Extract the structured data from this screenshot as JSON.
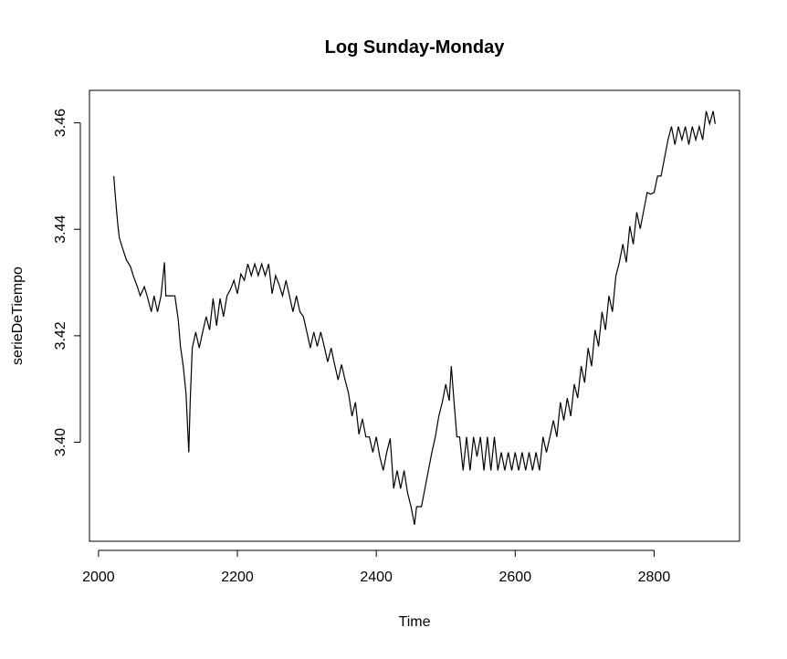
{
  "chart_data": {
    "type": "line",
    "title": "Log Sunday-Monday",
    "x_label": "Time",
    "y_label": "serieDeTiempo",
    "xlim": [
      1987,
      2923
    ],
    "ylim": [
      3.3814,
      3.4661
    ],
    "xticks": [
      2000,
      2200,
      2400,
      2600,
      2800
    ],
    "yticks": [
      {
        "value": 3.4,
        "label": "3.40"
      },
      3.42,
      3.44,
      3.46
    ],
    "grid": false,
    "series": [
      {
        "color": "#000000",
        "x": [
          2022,
          2024,
          2026,
          2028,
          2030,
          2034,
          2040,
          2046,
          2050,
          2056,
          2060,
          2066,
          2070,
          2076,
          2080,
          2085,
          2090,
          2095,
          2097,
          2110,
          2115,
          2118,
          2122,
          2126,
          2130,
          2132,
          2135,
          2140,
          2145,
          2150,
          2155,
          2160,
          2165,
          2170,
          2175,
          2180,
          2185,
          2190,
          2195,
          2200,
          2205,
          2210,
          2215,
          2220,
          2225,
          2230,
          2235,
          2240,
          2245,
          2250,
          2255,
          2260,
          2265,
          2270,
          2275,
          2280,
          2285,
          2290,
          2295,
          2300,
          2305,
          2310,
          2315,
          2320,
          2325,
          2330,
          2335,
          2340,
          2345,
          2350,
          2355,
          2360,
          2365,
          2370,
          2375,
          2380,
          2385,
          2390,
          2395,
          2400,
          2405,
          2410,
          2415,
          2420,
          2425,
          2430,
          2435,
          2440,
          2445,
          2450,
          2455,
          2458,
          2465,
          2470,
          2475,
          2480,
          2485,
          2490,
          2495,
          2500,
          2505,
          2508,
          2512,
          2516,
          2520,
          2525,
          2530,
          2535,
          2540,
          2545,
          2550,
          2555,
          2560,
          2565,
          2570,
          2575,
          2580,
          2585,
          2590,
          2595,
          2600,
          2605,
          2610,
          2615,
          2620,
          2625,
          2630,
          2635,
          2640,
          2645,
          2650,
          2655,
          2660,
          2665,
          2670,
          2675,
          2680,
          2685,
          2690,
          2695,
          2700,
          2705,
          2710,
          2715,
          2720,
          2725,
          2730,
          2735,
          2740,
          2745,
          2750,
          2755,
          2760,
          2765,
          2770,
          2775,
          2780,
          2785,
          2790,
          2795,
          2800,
          2805,
          2810,
          2815,
          2820,
          2825,
          2830,
          2835,
          2840,
          2845,
          2850,
          2855,
          2860,
          2865,
          2870,
          2875,
          2880,
          2885,
          2888
        ],
        "values": [
          3.45,
          3.4466,
          3.4435,
          3.4406,
          3.4384,
          3.4367,
          3.4343,
          3.433,
          3.4313,
          3.4292,
          3.4275,
          3.4292,
          3.4275,
          3.4245,
          3.4275,
          3.4245,
          3.4275,
          3.4338,
          3.4275,
          3.4275,
          3.4228,
          3.418,
          3.4143,
          3.4092,
          3.3981,
          3.4075,
          3.4177,
          3.4207,
          3.4177,
          3.4207,
          3.4236,
          3.4211,
          3.427,
          3.4219,
          3.427,
          3.4236,
          3.4275,
          3.4287,
          3.4304,
          3.4279,
          3.4316,
          3.4304,
          3.4335,
          3.4313,
          3.4335,
          3.4313,
          3.4335,
          3.4313,
          3.4335,
          3.4279,
          3.4313,
          3.4296,
          3.4275,
          3.4304,
          3.4275,
          3.4245,
          3.4275,
          3.4245,
          3.4236,
          3.4207,
          3.4177,
          3.4207,
          3.418,
          3.4207,
          3.418,
          3.4151,
          3.4177,
          3.4146,
          3.4117,
          3.4146,
          3.4117,
          3.4092,
          3.4049,
          3.4075,
          3.4015,
          3.4044,
          3.401,
          3.401,
          3.3981,
          3.401,
          3.3973,
          3.3947,
          3.3981,
          3.4007,
          3.3913,
          3.3947,
          3.3913,
          3.3947,
          3.3905,
          3.3879,
          3.3845,
          3.3879,
          3.3879,
          3.3913,
          3.3947,
          3.3981,
          3.401,
          3.4049,
          3.4075,
          3.4109,
          3.4078,
          3.4143,
          3.4075,
          3.401,
          3.401,
          3.3947,
          3.401,
          3.3947,
          3.401,
          3.3973,
          3.401,
          3.3947,
          3.401,
          3.3947,
          3.401,
          3.3947,
          3.3981,
          3.3947,
          3.3981,
          3.3947,
          3.3981,
          3.3947,
          3.3981,
          3.3947,
          3.3981,
          3.3947,
          3.3981,
          3.3947,
          3.401,
          3.3981,
          3.401,
          3.4041,
          3.401,
          3.4075,
          3.4041,
          3.4083,
          3.4049,
          3.4109,
          3.4083,
          3.4143,
          3.4112,
          3.4177,
          3.4143,
          3.4211,
          3.418,
          3.4245,
          3.4211,
          3.4275,
          3.4245,
          3.4313,
          3.4338,
          3.4372,
          3.4338,
          3.4406,
          3.4372,
          3.4432,
          3.4401,
          3.4435,
          3.4469,
          3.4466,
          3.4469,
          3.45,
          3.45,
          3.4534,
          3.4568,
          3.4593,
          3.4559,
          3.4593,
          3.4568,
          3.4593,
          3.4559,
          3.4593,
          3.4568,
          3.4593,
          3.4568,
          3.4622,
          3.4598,
          3.4622,
          3.4598
        ]
      }
    ]
  }
}
